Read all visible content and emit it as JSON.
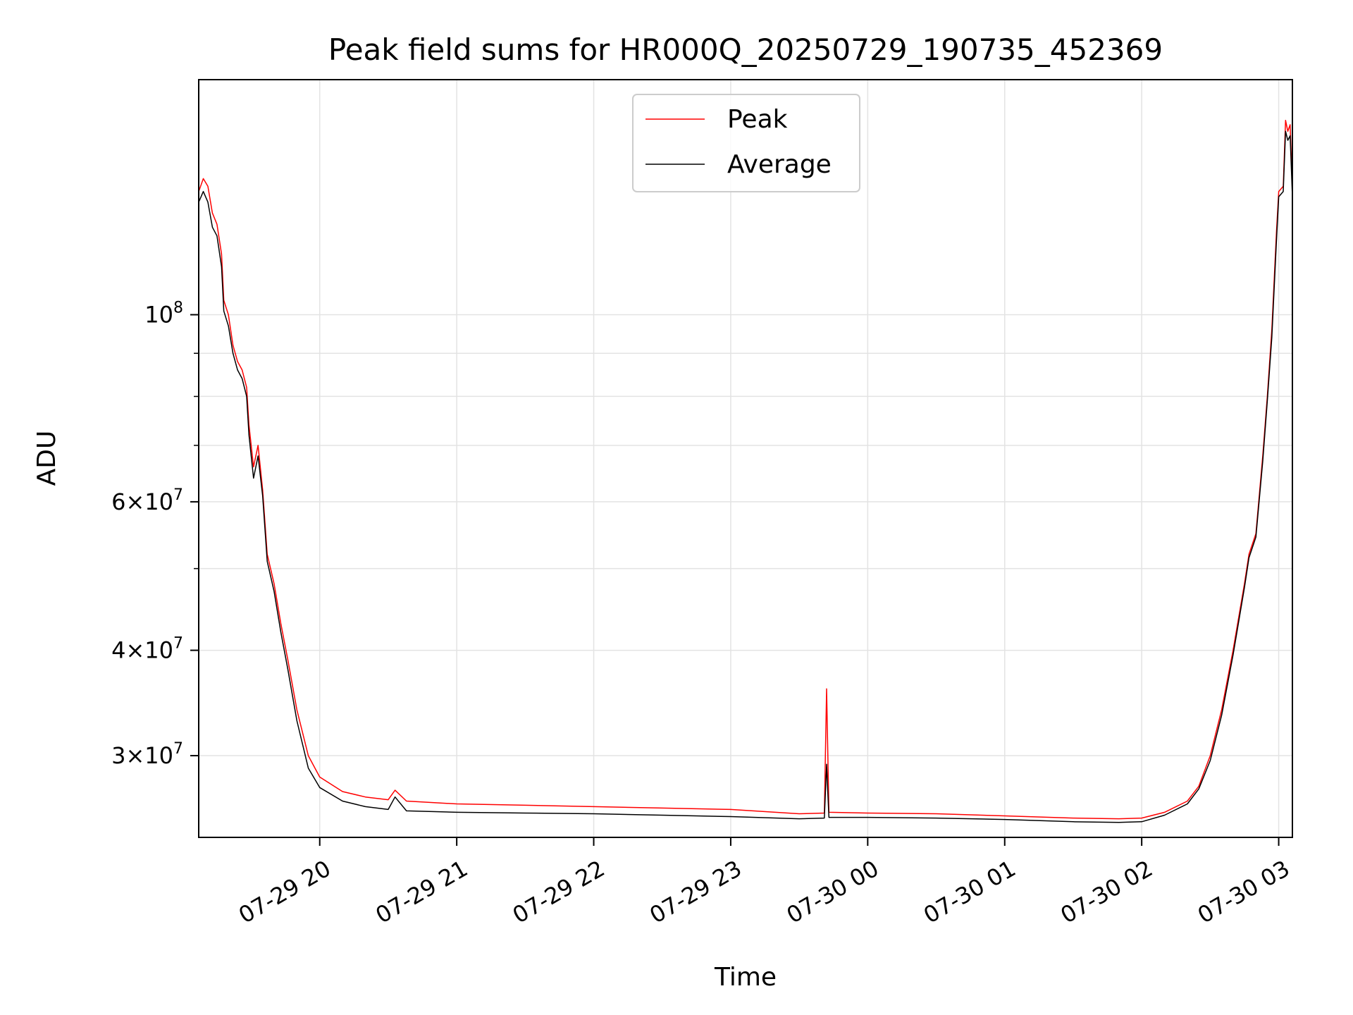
{
  "chart_data": {
    "type": "line",
    "title": "Peak field sums for HR000Q_20250729_190735_452369",
    "xlabel": "Time",
    "ylabel": "ADU",
    "yscale": "log",
    "xlim": [
      "2025-07-29 19:07",
      "2025-07-30 03:06"
    ],
    "ylim": [
      24000000,
      190000000
    ],
    "grid": true,
    "legend_position": "top-center",
    "x_ticks": [
      {
        "time": "2025-07-29 20:00",
        "label": "07-29 20"
      },
      {
        "time": "2025-07-29 21:00",
        "label": "07-29 21"
      },
      {
        "time": "2025-07-29 22:00",
        "label": "07-29 22"
      },
      {
        "time": "2025-07-29 23:00",
        "label": "07-29 23"
      },
      {
        "time": "2025-07-30 00:00",
        "label": "07-30 00"
      },
      {
        "time": "2025-07-30 01:00",
        "label": "07-30 01"
      },
      {
        "time": "2025-07-30 02:00",
        "label": "07-30 02"
      },
      {
        "time": "2025-07-30 03:00",
        "label": "07-30 03"
      }
    ],
    "y_major_ticks": [
      {
        "value": 30000000,
        "base": "3",
        "exp": "7"
      },
      {
        "value": 40000000,
        "base": "4",
        "exp": "7"
      },
      {
        "value": 60000000,
        "base": "6",
        "exp": "7"
      },
      {
        "value": 100000000,
        "base": "",
        "exp": "8"
      }
    ],
    "y_minor_grid": [
      50000000,
      70000000,
      80000000,
      90000000
    ],
    "series": [
      {
        "name": "Peak",
        "color": "#ff0000",
        "points": [
          [
            "2025-07-29 19:07",
            140000000
          ],
          [
            "2025-07-29 19:09",
            145000000
          ],
          [
            "2025-07-29 19:11",
            142000000
          ],
          [
            "2025-07-29 19:13",
            132000000
          ],
          [
            "2025-07-29 19:15",
            128000000
          ],
          [
            "2025-07-29 19:17",
            118000000
          ],
          [
            "2025-07-29 19:18",
            104000000
          ],
          [
            "2025-07-29 19:20",
            100000000
          ],
          [
            "2025-07-29 19:22",
            92000000
          ],
          [
            "2025-07-29 19:24",
            88000000
          ],
          [
            "2025-07-29 19:26",
            86000000
          ],
          [
            "2025-07-29 19:28",
            82000000
          ],
          [
            "2025-07-29 19:29",
            74000000
          ],
          [
            "2025-07-29 19:31",
            66000000
          ],
          [
            "2025-07-29 19:33",
            70000000
          ],
          [
            "2025-07-29 19:35",
            62000000
          ],
          [
            "2025-07-29 19:37",
            52000000
          ],
          [
            "2025-07-29 19:40",
            48000000
          ],
          [
            "2025-07-29 19:43",
            43000000
          ],
          [
            "2025-07-29 19:46",
            39000000
          ],
          [
            "2025-07-29 19:50",
            34000000
          ],
          [
            "2025-07-29 19:55",
            30000000
          ],
          [
            "2025-07-29 20:00",
            28300000
          ],
          [
            "2025-07-29 20:10",
            27200000
          ],
          [
            "2025-07-29 20:20",
            26800000
          ],
          [
            "2025-07-29 20:30",
            26600000
          ],
          [
            "2025-07-29 20:33",
            27300000
          ],
          [
            "2025-07-29 20:38",
            26500000
          ],
          [
            "2025-07-29 21:00",
            26300000
          ],
          [
            "2025-07-29 21:30",
            26200000
          ],
          [
            "2025-07-29 22:00",
            26100000
          ],
          [
            "2025-07-29 22:30",
            26000000
          ],
          [
            "2025-07-29 23:00",
            25900000
          ],
          [
            "2025-07-29 23:30",
            25600000
          ],
          [
            "2025-07-29 23:41",
            25650000
          ],
          [
            "2025-07-29 23:42",
            36000000
          ],
          [
            "2025-07-29 23:43",
            25700000
          ],
          [
            "2025-07-30 00:00",
            25650000
          ],
          [
            "2025-07-30 00:30",
            25600000
          ],
          [
            "2025-07-30 01:00",
            25450000
          ],
          [
            "2025-07-30 01:30",
            25300000
          ],
          [
            "2025-07-30 01:50",
            25250000
          ],
          [
            "2025-07-30 02:00",
            25300000
          ],
          [
            "2025-07-30 02:10",
            25700000
          ],
          [
            "2025-07-30 02:20",
            26500000
          ],
          [
            "2025-07-30 02:25",
            27600000
          ],
          [
            "2025-07-30 02:30",
            30000000
          ],
          [
            "2025-07-30 02:35",
            34000000
          ],
          [
            "2025-07-30 02:40",
            40000000
          ],
          [
            "2025-07-30 02:45",
            48000000
          ],
          [
            "2025-07-30 02:47",
            52000000
          ],
          [
            "2025-07-30 02:50",
            55000000
          ],
          [
            "2025-07-30 02:53",
            68000000
          ],
          [
            "2025-07-30 02:55",
            80000000
          ],
          [
            "2025-07-30 02:57",
            96000000
          ],
          [
            "2025-07-30 02:59",
            125000000
          ],
          [
            "2025-07-30 03:00",
            140000000
          ],
          [
            "2025-07-30 03:02",
            142000000
          ],
          [
            "2025-07-30 03:03",
            170000000
          ],
          [
            "2025-07-30 03:04",
            165000000
          ],
          [
            "2025-07-30 03:05",
            168000000
          ],
          [
            "2025-07-30 03:06",
            140000000
          ]
        ]
      },
      {
        "name": "Average",
        "color": "#000000",
        "points": [
          [
            "2025-07-29 19:07",
            136000000
          ],
          [
            "2025-07-29 19:09",
            140000000
          ],
          [
            "2025-07-29 19:11",
            136000000
          ],
          [
            "2025-07-29 19:13",
            127000000
          ],
          [
            "2025-07-29 19:15",
            124000000
          ],
          [
            "2025-07-29 19:17",
            114000000
          ],
          [
            "2025-07-29 19:18",
            101000000
          ],
          [
            "2025-07-29 19:20",
            97000000
          ],
          [
            "2025-07-29 19:22",
            90000000
          ],
          [
            "2025-07-29 19:24",
            86000000
          ],
          [
            "2025-07-29 19:26",
            84000000
          ],
          [
            "2025-07-29 19:28",
            80000000
          ],
          [
            "2025-07-29 19:29",
            72000000
          ],
          [
            "2025-07-29 19:31",
            64000000
          ],
          [
            "2025-07-29 19:33",
            68000000
          ],
          [
            "2025-07-29 19:35",
            61000000
          ],
          [
            "2025-07-29 19:37",
            51000000
          ],
          [
            "2025-07-29 19:40",
            47000000
          ],
          [
            "2025-07-29 19:43",
            42000000
          ],
          [
            "2025-07-29 19:46",
            38000000
          ],
          [
            "2025-07-29 19:50",
            33000000
          ],
          [
            "2025-07-29 19:55",
            29000000
          ],
          [
            "2025-07-29 20:00",
            27500000
          ],
          [
            "2025-07-29 20:10",
            26500000
          ],
          [
            "2025-07-29 20:20",
            26100000
          ],
          [
            "2025-07-29 20:30",
            25900000
          ],
          [
            "2025-07-29 20:33",
            26800000
          ],
          [
            "2025-07-29 20:38",
            25800000
          ],
          [
            "2025-07-29 21:00",
            25700000
          ],
          [
            "2025-07-29 21:30",
            25650000
          ],
          [
            "2025-07-29 22:00",
            25600000
          ],
          [
            "2025-07-29 22:30",
            25500000
          ],
          [
            "2025-07-29 23:00",
            25400000
          ],
          [
            "2025-07-29 23:30",
            25250000
          ],
          [
            "2025-07-29 23:41",
            25300000
          ],
          [
            "2025-07-29 23:42",
            29300000
          ],
          [
            "2025-07-29 23:43",
            25350000
          ],
          [
            "2025-07-30 00:00",
            25350000
          ],
          [
            "2025-07-30 00:30",
            25300000
          ],
          [
            "2025-07-30 01:00",
            25200000
          ],
          [
            "2025-07-30 01:30",
            25050000
          ],
          [
            "2025-07-30 01:50",
            25000000
          ],
          [
            "2025-07-30 02:00",
            25050000
          ],
          [
            "2025-07-30 02:10",
            25500000
          ],
          [
            "2025-07-30 02:20",
            26300000
          ],
          [
            "2025-07-30 02:25",
            27400000
          ],
          [
            "2025-07-30 02:30",
            29600000
          ],
          [
            "2025-07-30 02:35",
            33500000
          ],
          [
            "2025-07-30 02:40",
            39500000
          ],
          [
            "2025-07-30 02:45",
            47500000
          ],
          [
            "2025-07-30 02:47",
            51500000
          ],
          [
            "2025-07-30 02:50",
            54500000
          ],
          [
            "2025-07-30 02:53",
            67000000
          ],
          [
            "2025-07-30 02:55",
            79000000
          ],
          [
            "2025-07-30 02:57",
            94000000
          ],
          [
            "2025-07-30 02:59",
            122000000
          ],
          [
            "2025-07-30 03:00",
            138000000
          ],
          [
            "2025-07-30 03:02",
            140000000
          ],
          [
            "2025-07-30 03:03",
            165000000
          ],
          [
            "2025-07-30 03:04",
            161000000
          ],
          [
            "2025-07-30 03:05",
            163000000
          ],
          [
            "2025-07-30 03:06",
            138000000
          ]
        ]
      }
    ]
  }
}
